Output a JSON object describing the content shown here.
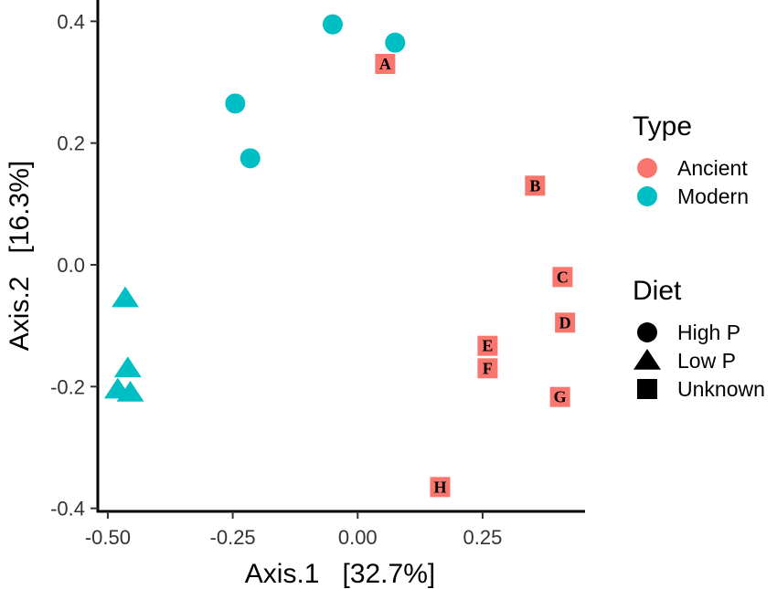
{
  "chart_data": {
    "type": "scatter",
    "xlabel": "Axis.1   [32.7%]",
    "ylabel": "Axis.2   [16.3%]",
    "xlim": [
      -0.52,
      0.455
    ],
    "ylim": [
      -0.405,
      0.435
    ],
    "x_ticks": [
      -0.5,
      -0.25,
      0.0,
      0.25
    ],
    "x_tick_labels": [
      "-0.50",
      "-0.25",
      "0.00",
      "0.25"
    ],
    "y_ticks": [
      -0.4,
      -0.2,
      0.0,
      0.2,
      0.4
    ],
    "y_tick_labels": [
      "-0.4",
      "-0.2",
      "0.0",
      "0.2",
      "0.4"
    ],
    "grid": false,
    "legend_position": "right",
    "legends": [
      {
        "title": "Type",
        "entries": [
          {
            "label": "Ancient",
            "color": "#F8766D",
            "shape": "circle"
          },
          {
            "label": "Modern",
            "color": "#00BFC4",
            "shape": "circle"
          }
        ]
      },
      {
        "title": "Diet",
        "entries": [
          {
            "label": "High P",
            "color": "#000000",
            "shape": "circle"
          },
          {
            "label": "Low P",
            "color": "#000000",
            "shape": "triangle"
          },
          {
            "label": "Unknown",
            "color": "#000000",
            "shape": "square"
          }
        ]
      }
    ],
    "points": [
      {
        "x": -0.05,
        "y": 0.395,
        "type": "Modern",
        "diet": "High P",
        "label": ""
      },
      {
        "x": 0.075,
        "y": 0.365,
        "type": "Modern",
        "diet": "High P",
        "label": ""
      },
      {
        "x": -0.245,
        "y": 0.265,
        "type": "Modern",
        "diet": "High P",
        "label": ""
      },
      {
        "x": -0.215,
        "y": 0.175,
        "type": "Modern",
        "diet": "High P",
        "label": ""
      },
      {
        "x": -0.465,
        "y": -0.055,
        "type": "Modern",
        "diet": "Low P",
        "label": ""
      },
      {
        "x": -0.46,
        "y": -0.17,
        "type": "Modern",
        "diet": "Low P",
        "label": ""
      },
      {
        "x": -0.48,
        "y": -0.205,
        "type": "Modern",
        "diet": "Low P",
        "label": ""
      },
      {
        "x": -0.455,
        "y": -0.21,
        "type": "Modern",
        "diet": "Low P",
        "label": ""
      },
      {
        "x": 0.055,
        "y": 0.33,
        "type": "Ancient",
        "diet": "Unknown",
        "label": "A"
      },
      {
        "x": 0.355,
        "y": 0.13,
        "type": "Ancient",
        "diet": "Unknown",
        "label": "B"
      },
      {
        "x": 0.41,
        "y": -0.02,
        "type": "Ancient",
        "diet": "Unknown",
        "label": "C"
      },
      {
        "x": 0.415,
        "y": -0.095,
        "type": "Ancient",
        "diet": "Unknown",
        "label": "D"
      },
      {
        "x": 0.26,
        "y": -0.133,
        "type": "Ancient",
        "diet": "Unknown",
        "label": "E"
      },
      {
        "x": 0.26,
        "y": -0.17,
        "type": "Ancient",
        "diet": "Unknown",
        "label": "F"
      },
      {
        "x": 0.405,
        "y": -0.217,
        "type": "Ancient",
        "diet": "Unknown",
        "label": "G"
      },
      {
        "x": 0.165,
        "y": -0.365,
        "type": "Ancient",
        "diet": "Unknown",
        "label": "H"
      }
    ]
  }
}
